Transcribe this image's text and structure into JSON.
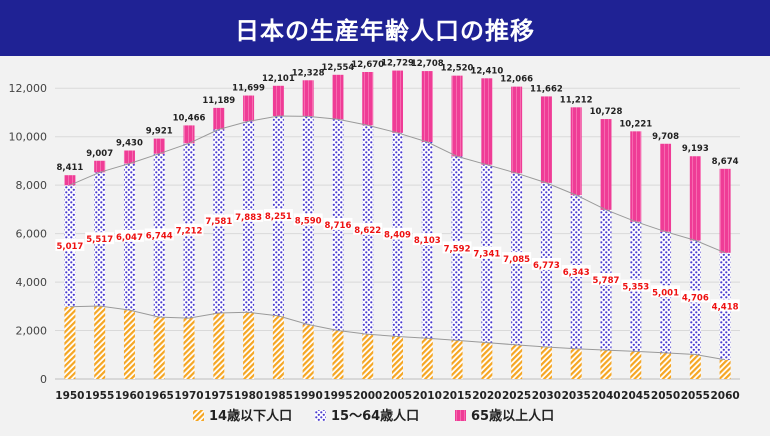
{
  "page": {
    "title": "日本の生産年齢人口の推移"
  },
  "colors": {
    "title_bg": "#1f2294",
    "young": "#f5a623",
    "working": "#4a3ad0",
    "elderly": "#ef3c96",
    "grid": "#d9d9d9",
    "label_red": "#ee1111",
    "trend_line": "#9a9a9a"
  },
  "chart_data": {
    "type": "bar",
    "stacked": true,
    "title": "日本の生産年齢人口の推移",
    "xlabel": "",
    "ylabel": "",
    "ylim": [
      0,
      13000
    ],
    "yticks": [
      0,
      2000,
      4000,
      6000,
      8000,
      10000,
      12000
    ],
    "ytick_labels": [
      "0",
      "2,000",
      "4,000",
      "6,000",
      "8,000",
      "10,000",
      "12,000"
    ],
    "grid": true,
    "legend_position": "bottom",
    "categories": [
      "1950",
      "1955",
      "1960",
      "1965",
      "1970",
      "1975",
      "1980",
      "1985",
      "1990",
      "1995",
      "2000",
      "2005",
      "2010",
      "2015",
      "2020",
      "2025",
      "2030",
      "2035",
      "2040",
      "2045",
      "2050",
      "2055",
      "2060"
    ],
    "series": [
      {
        "name": "14歳以下人口",
        "values": [
          2980,
          3012,
          2843,
          2553,
          2515,
          2722,
          2751,
          2603,
          2249,
          2001,
          1847,
          1752,
          1680,
          1595,
          1503,
          1407,
          1321,
          1246,
          1194,
          1138,
          1077,
          1012,
          791
        ]
      },
      {
        "name": "15〜64歳人口",
        "values": [
          5017,
          5517,
          6047,
          6744,
          7212,
          7581,
          7883,
          8251,
          8590,
          8716,
          8622,
          8409,
          8103,
          7592,
          7341,
          7085,
          6773,
          6343,
          5787,
          5353,
          5001,
          4706,
          4418
        ]
      },
      {
        "name": "65歳以上人口",
        "values": [
          414,
          478,
          540,
          624,
          739,
          886,
          1065,
          1247,
          1489,
          1837,
          2201,
          2568,
          2925,
          3333,
          3566,
          3574,
          3568,
          3623,
          3747,
          3730,
          3630,
          3475,
          3465
        ]
      }
    ],
    "working_labels": [
      "5,017",
      "5,517",
      "6,047",
      "6,744",
      "7,212",
      "7,581",
      "7,883",
      "8,251",
      "8,590",
      "8,716",
      "8,622",
      "8,409",
      "8,103",
      "7,592",
      "7,341",
      "7,085",
      "6,773",
      "6,343",
      "5,787",
      "5,353",
      "5,001",
      "4,706",
      "4,418"
    ],
    "totals": [
      8411,
      9007,
      9430,
      9921,
      10466,
      11189,
      11699,
      12101,
      12328,
      12554,
      12670,
      12729,
      12708,
      12520,
      12410,
      12066,
      11662,
      11212,
      10728,
      10221,
      9708,
      9193,
      8674
    ],
    "total_labels": [
      "8,411",
      "9,007",
      "9,430",
      "9,921",
      "10,466",
      "11,189",
      "11,699",
      "12,101",
      "12,328",
      "12,554",
      "12,670",
      "12,729",
      "12,708",
      "12,520",
      "12,410",
      "12,066",
      "11,662",
      "11,212",
      "10,728",
      "10,221",
      "9,708",
      "9,193",
      "8,674"
    ],
    "legend": [
      "14歳以下人口",
      "15〜64歳人口",
      "65歳以上人口"
    ]
  }
}
